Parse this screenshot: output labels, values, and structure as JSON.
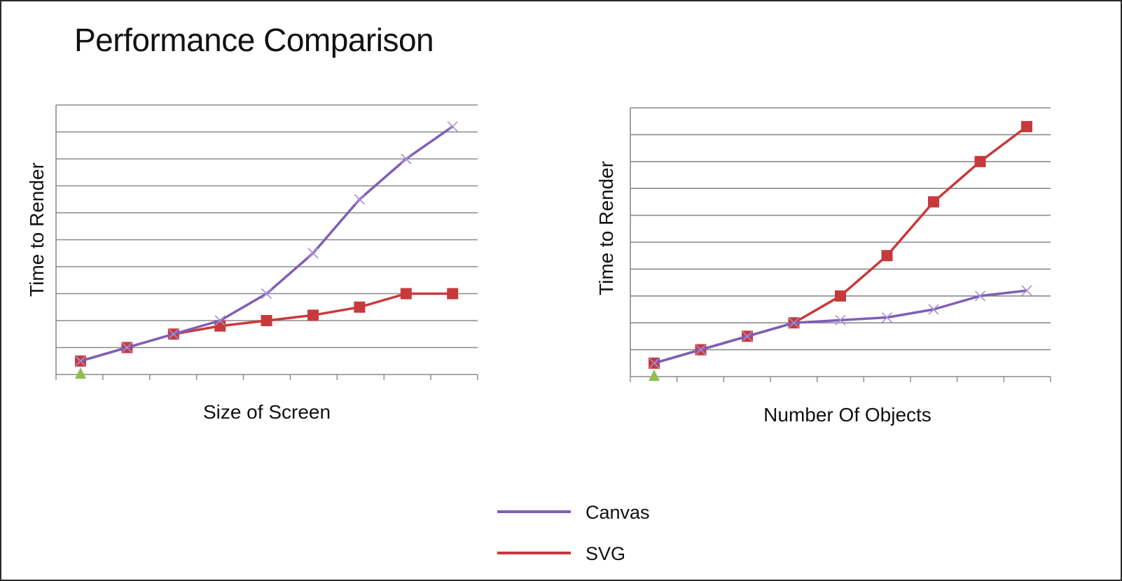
{
  "title": "Performance Comparison",
  "colors": {
    "Canvas": "#7e5fb5",
    "SVG": "#c8393b",
    "grid": "#8a8a8a",
    "start_marker": "#8cc152"
  },
  "legend": {
    "position": "bottom-center",
    "items": [
      {
        "name": "Canvas",
        "color_key": "Canvas"
      },
      {
        "name": "SVG",
        "color_key": "SVG"
      }
    ]
  },
  "chart_data": [
    {
      "type": "line",
      "xlabel": "Size of Screen",
      "ylabel": "Time to Render",
      "x": [
        1,
        2,
        3,
        4,
        5,
        6,
        7,
        8,
        9
      ],
      "ylim": [
        0,
        10
      ],
      "grid": true,
      "series": [
        {
          "name": "Canvas",
          "marker": "x",
          "values": [
            0.5,
            1.0,
            1.5,
            2.0,
            3.0,
            4.5,
            6.5,
            8.0,
            9.2
          ]
        },
        {
          "name": "SVG",
          "marker": "square",
          "values": [
            0.5,
            1.0,
            1.5,
            1.8,
            2.0,
            2.2,
            2.5,
            3.0,
            3.0
          ]
        }
      ]
    },
    {
      "type": "line",
      "xlabel": "Number Of Objects",
      "ylabel": "Time to Render",
      "x": [
        1,
        2,
        3,
        4,
        5,
        6,
        7,
        8,
        9
      ],
      "ylim": [
        0,
        10
      ],
      "grid": true,
      "series": [
        {
          "name": "Canvas",
          "marker": "x",
          "values": [
            0.5,
            1.0,
            1.5,
            2.0,
            2.1,
            2.2,
            2.5,
            3.0,
            3.2
          ]
        },
        {
          "name": "SVG",
          "marker": "square",
          "values": [
            0.5,
            1.0,
            1.5,
            2.0,
            3.0,
            4.5,
            6.5,
            8.0,
            9.3
          ]
        }
      ]
    }
  ]
}
